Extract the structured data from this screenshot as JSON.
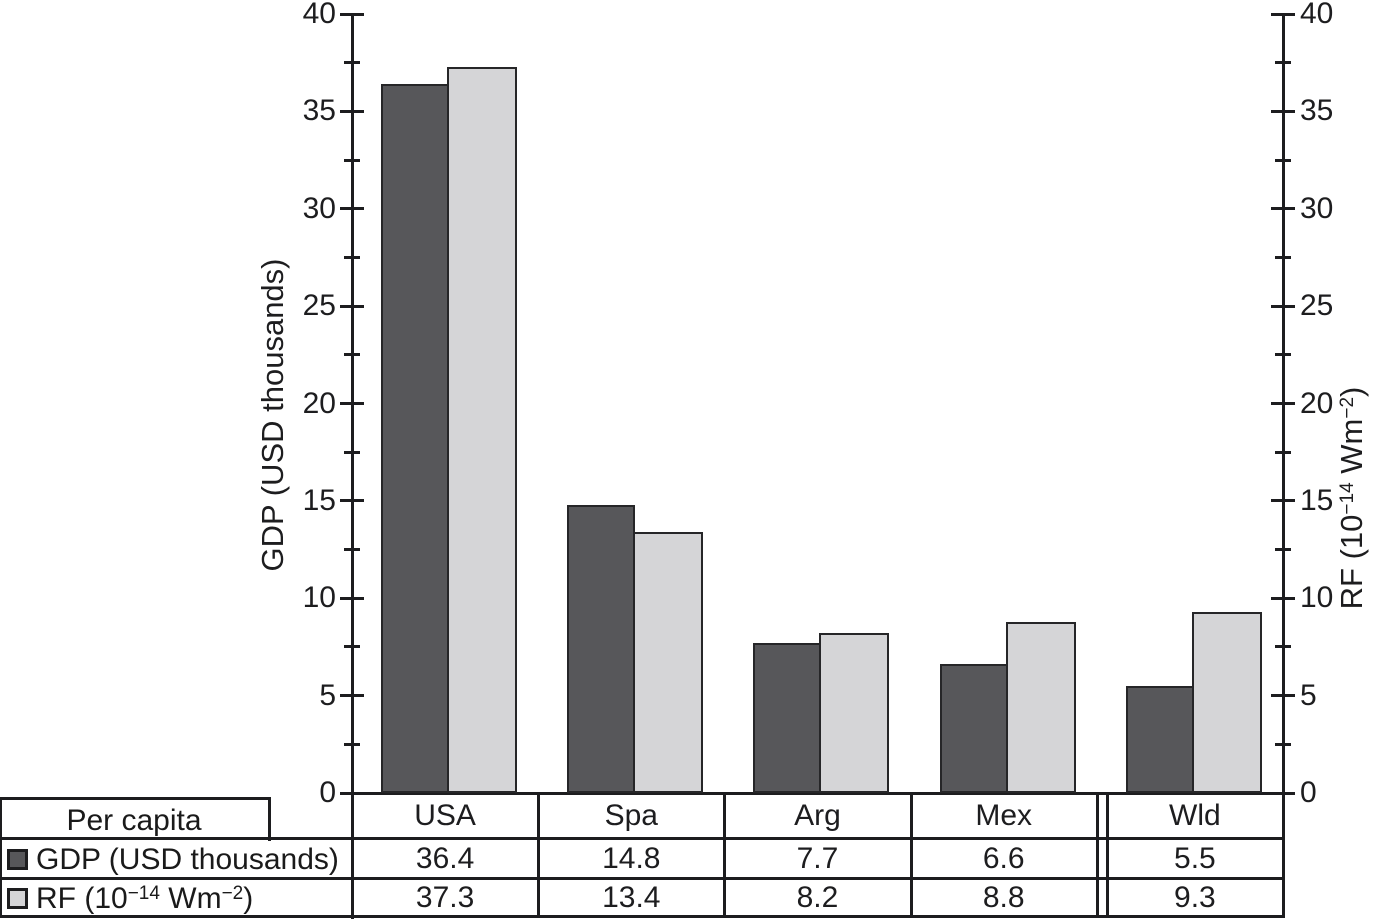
{
  "chart_data": {
    "type": "bar",
    "categories": [
      "USA",
      "Spa",
      "Arg",
      "Mex",
      "Wld"
    ],
    "series": [
      {
        "name": "GDP (USD thousands)",
        "values": [
          36.4,
          14.8,
          7.7,
          6.6,
          5.5
        ],
        "color": "#57575a"
      },
      {
        "name": "RF (10−14 Wm−2)",
        "values": [
          37.3,
          13.4,
          8.2,
          8.8,
          9.3
        ],
        "color": "#d5d5d7"
      }
    ],
    "left_axis": {
      "label": "GDP (USD thousands)",
      "ylim": [
        0,
        40
      ],
      "major_tick_step": 5,
      "minor_tick_step": 2.5,
      "tick_labels": [
        "0",
        "5",
        "10",
        "15",
        "20",
        "25",
        "30",
        "35",
        "40"
      ]
    },
    "right_axis": {
      "label": "RF (10−14 Wm−2)",
      "ylim": [
        0,
        40
      ],
      "major_tick_step": 5,
      "minor_tick_step": 2.5,
      "tick_labels": [
        "0",
        "5",
        "10",
        "15",
        "20",
        "25",
        "30",
        "35",
        "40"
      ]
    },
    "legend_title": "Per capita",
    "legend_position": "bottom-left-table",
    "grid": "off",
    "axis_break_between": [
      "Mex",
      "Wld"
    ]
  },
  "labels": {
    "gdp_axis": "GDP (USD thousands)",
    "per_capita": "Per capita",
    "rf_parts": {
      "pre": "RF (10",
      "sup1": "−14",
      "mid": " Wm",
      "sup2": "−2",
      "post": ")"
    }
  },
  "colors": {
    "gdp_bar": "#57575a",
    "rf_bar": "#d5d5d7",
    "line": "#1d1d1f",
    "background": "#ffffff"
  }
}
